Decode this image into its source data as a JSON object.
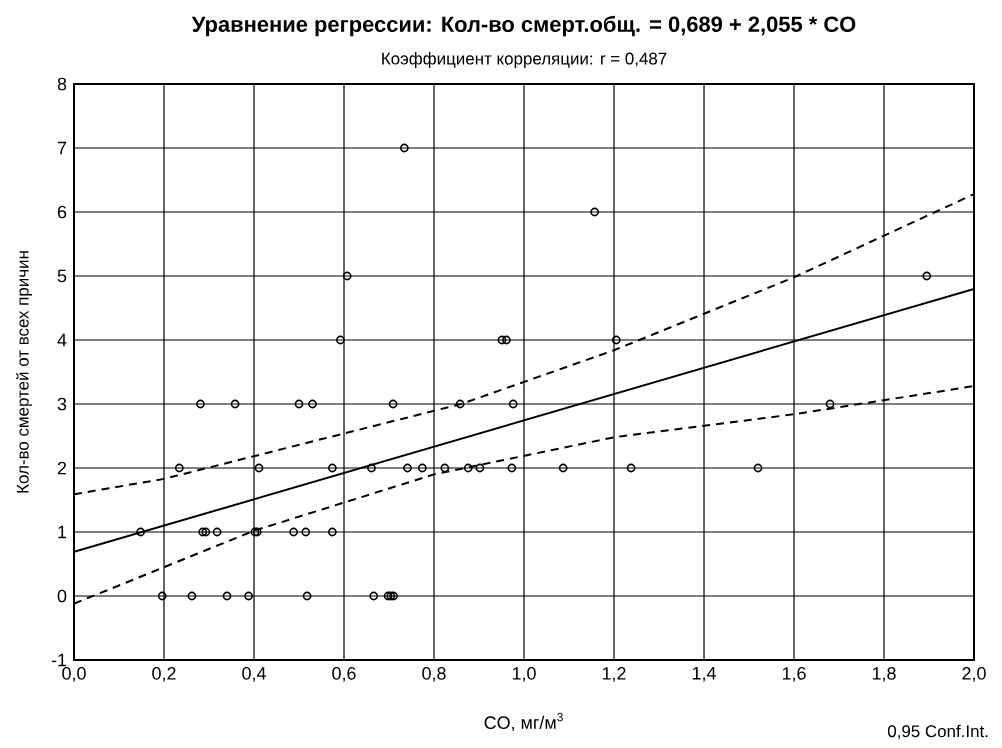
{
  "chart_data": {
    "type": "scatter",
    "title": "Уравнение регрессии: Кол-во смерт.общ. = 0,689 + 2,055 * CO",
    "subtitle": "Коэффициент корреляции: r = 0,487",
    "xlabel": "CO, мг/м$^{3}$",
    "ylabel": "Кол-во смертей от всех причин",
    "annotations": [
      "0,95 Conf.Int."
    ],
    "xlim": [
      0,
      2
    ],
    "ylim": [
      -1,
      8
    ],
    "xticks": [
      {
        "value": 0,
        "label": "0,0"
      },
      {
        "value": 0.2,
        "label": "0,2"
      },
      {
        "value": 0.4,
        "label": "0,4"
      },
      {
        "value": 0.6,
        "label": "0,6"
      },
      {
        "value": 0.8,
        "label": "0,8"
      },
      {
        "value": 1.0,
        "label": "1,0"
      },
      {
        "value": 1.2,
        "label": "1,2"
      },
      {
        "value": 1.4,
        "label": "1,4"
      },
      {
        "value": 1.6,
        "label": "1,6"
      },
      {
        "value": 1.8,
        "label": "1,8"
      },
      {
        "value": 2.0,
        "label": "2,0"
      }
    ],
    "yticks": [
      -1,
      0,
      1,
      2,
      3,
      4,
      5,
      6,
      7,
      8
    ],
    "grid": true,
    "series": [
      {
        "color": "#000000",
        "marker": "circle",
        "x": [
          0.196,
          0.262,
          0.34,
          0.388,
          0.518,
          0.666,
          0.698,
          0.704,
          0.71,
          0.148,
          0.286,
          0.293,
          0.318,
          0.402,
          0.407,
          0.488,
          0.515,
          0.574,
          0.234,
          0.411,
          0.574,
          0.661,
          0.741,
          0.774,
          0.824,
          0.876,
          0.902,
          0.973,
          1.087,
          1.238,
          1.52,
          0.281,
          0.358,
          0.5,
          0.53,
          0.709,
          0.858,
          0.976,
          1.68,
          0.592,
          0.951,
          0.961,
          1.205,
          0.607,
          1.895,
          1.157,
          0.734
        ],
        "values": [
          0,
          0,
          0,
          0,
          0,
          0,
          0,
          0,
          0,
          1,
          1,
          1,
          1,
          1,
          1,
          1,
          1,
          1,
          2,
          2,
          2,
          2,
          2,
          2,
          2,
          2,
          2,
          2,
          2,
          2,
          2,
          3,
          3,
          3,
          3,
          3,
          3,
          3,
          3,
          4,
          4,
          4,
          4,
          5,
          5,
          6,
          7
        ]
      },
      {
        "type": "line",
        "color": "#000000",
        "marker": "none",
        "line_style": "solid",
        "x": [
          0,
          2
        ],
        "values": [
          0.689,
          4.799
        ]
      },
      {
        "type": "line",
        "color": "#000000",
        "marker": "none",
        "line_style": "dashed",
        "x": [
          0,
          0.2,
          0.86,
          1.2,
          1.6,
          2.0
        ],
        "values": [
          1.59,
          1.83,
          3.0,
          3.84,
          4.98,
          6.28
        ]
      },
      {
        "type": "line",
        "color": "#000000",
        "marker": "none",
        "line_style": "dashed",
        "x": [
          0,
          0.4,
          0.8,
          1.2,
          1.6,
          2.0
        ],
        "values": [
          -0.12,
          1.02,
          1.9,
          2.48,
          2.84,
          3.28
        ]
      }
    ]
  }
}
